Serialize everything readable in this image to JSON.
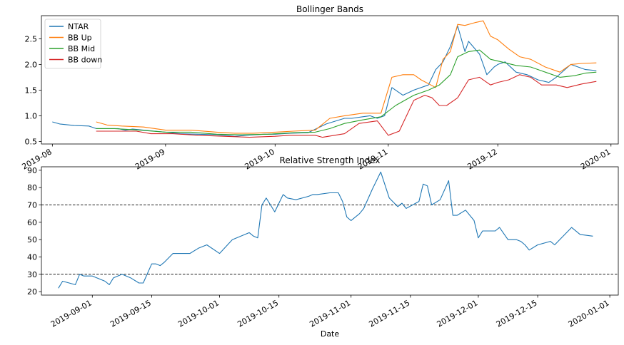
{
  "chart_data": [
    {
      "type": "line",
      "title": "Bollinger Bands",
      "xlabel": "",
      "ylabel": "",
      "x_axis": "date",
      "xlim": [
        "2019-07-29",
        "2020-01-03"
      ],
      "ylim": [
        0.45,
        2.95
      ],
      "yticks": [
        0.5,
        1.0,
        1.5,
        2.0,
        2.5
      ],
      "ytick_labels": [
        "0.5",
        "1.0",
        "1.5",
        "2.0",
        "2.5"
      ],
      "xticks": [
        "2019-08-01",
        "2019-09-01",
        "2019-10-01",
        "2019-11-01",
        "2019-12-01",
        "2020-01-01"
      ],
      "xtick_labels": [
        "2019-08",
        "2019-09",
        "2019-10",
        "2019-11",
        "2019-12",
        "2020-01"
      ],
      "grid": false,
      "legend": "upper left",
      "series": [
        {
          "name": "NTAR",
          "color": "#1f77b4",
          "x": [
            "2019-08-01",
            "2019-08-03",
            "2019-08-07",
            "2019-08-11",
            "2019-08-13",
            "2019-08-19",
            "2019-08-21",
            "2019-08-23",
            "2019-08-29",
            "2019-09-01",
            "2019-09-05",
            "2019-09-10",
            "2019-09-15",
            "2019-09-20",
            "2019-09-23",
            "2019-09-28",
            "2019-10-01",
            "2019-10-05",
            "2019-10-10",
            "2019-10-15",
            "2019-10-20",
            "2019-10-22",
            "2019-10-25",
            "2019-10-27",
            "2019-10-29",
            "2019-10-31",
            "2019-11-02",
            "2019-11-05",
            "2019-11-08",
            "2019-11-12",
            "2019-11-14",
            "2019-11-16",
            "2019-11-18",
            "2019-11-20",
            "2019-11-22",
            "2019-11-23",
            "2019-11-26",
            "2019-11-28",
            "2019-11-30",
            "2019-12-01",
            "2019-12-03",
            "2019-12-06",
            "2019-12-09",
            "2019-12-12",
            "2019-12-15",
            "2019-12-17",
            "2019-12-21",
            "2019-12-23",
            "2019-12-25",
            "2019-12-28"
          ],
          "y": [
            0.88,
            0.84,
            0.81,
            0.8,
            0.75,
            0.75,
            0.72,
            0.74,
            0.7,
            0.68,
            0.65,
            0.64,
            0.63,
            0.6,
            0.62,
            0.64,
            0.64,
            0.66,
            0.67,
            0.84,
            0.95,
            0.95,
            0.98,
            1.0,
            0.95,
            1.0,
            1.55,
            1.4,
            1.5,
            1.6,
            1.9,
            2.05,
            2.35,
            2.75,
            2.25,
            2.45,
            2.2,
            1.8,
            1.95,
            2.0,
            2.05,
            1.85,
            1.8,
            1.7,
            1.65,
            1.75,
            2.0,
            1.95,
            1.9,
            1.88
          ]
        },
        {
          "name": "BB Up",
          "color": "#ff7f0e",
          "x": [
            "2019-08-13",
            "2019-08-16",
            "2019-08-20",
            "2019-08-26",
            "2019-09-01",
            "2019-09-08",
            "2019-09-15",
            "2019-09-20",
            "2019-09-25",
            "2019-10-01",
            "2019-10-06",
            "2019-10-12",
            "2019-10-16",
            "2019-10-20",
            "2019-10-25",
            "2019-10-30",
            "2019-11-02",
            "2019-11-05",
            "2019-11-08",
            "2019-11-10",
            "2019-11-14",
            "2019-11-16",
            "2019-11-18",
            "2019-11-20",
            "2019-11-22",
            "2019-11-25",
            "2019-11-27",
            "2019-11-29",
            "2019-12-01",
            "2019-12-04",
            "2019-12-07",
            "2019-12-10",
            "2019-12-14",
            "2019-12-18",
            "2019-12-21",
            "2019-12-24",
            "2019-12-28"
          ],
          "y": [
            0.88,
            0.82,
            0.8,
            0.78,
            0.72,
            0.72,
            0.68,
            0.66,
            0.66,
            0.68,
            0.7,
            0.72,
            0.95,
            1.0,
            1.05,
            1.05,
            1.75,
            1.8,
            1.8,
            1.7,
            1.55,
            2.1,
            2.25,
            2.78,
            2.76,
            2.82,
            2.85,
            2.55,
            2.48,
            2.3,
            2.15,
            2.1,
            1.95,
            1.85,
            2.0,
            2.02,
            2.03
          ]
        },
        {
          "name": "BB Mid",
          "color": "#2ca02c",
          "x": [
            "2019-08-13",
            "2019-08-18",
            "2019-08-25",
            "2019-09-01",
            "2019-09-08",
            "2019-09-15",
            "2019-09-22",
            "2019-09-29",
            "2019-10-06",
            "2019-10-12",
            "2019-10-16",
            "2019-10-20",
            "2019-10-25",
            "2019-10-30",
            "2019-11-03",
            "2019-11-08",
            "2019-11-12",
            "2019-11-15",
            "2019-11-18",
            "2019-11-20",
            "2019-11-23",
            "2019-11-26",
            "2019-11-29",
            "2019-12-02",
            "2019-12-06",
            "2019-12-10",
            "2019-12-14",
            "2019-12-18",
            "2019-12-22",
            "2019-12-25",
            "2019-12-28"
          ],
          "y": [
            0.75,
            0.75,
            0.72,
            0.68,
            0.68,
            0.64,
            0.63,
            0.64,
            0.67,
            0.68,
            0.75,
            0.85,
            0.92,
            0.98,
            1.2,
            1.4,
            1.5,
            1.6,
            1.8,
            2.15,
            2.25,
            2.28,
            2.1,
            2.05,
            1.98,
            1.95,
            1.85,
            1.75,
            1.78,
            1.83,
            1.85
          ]
        },
        {
          "name": "BB down",
          "color": "#d62728",
          "x": [
            "2019-08-13",
            "2019-08-18",
            "2019-08-24",
            "2019-08-28",
            "2019-09-03",
            "2019-09-10",
            "2019-09-17",
            "2019-09-24",
            "2019-10-01",
            "2019-10-05",
            "2019-10-12",
            "2019-10-14",
            "2019-10-20",
            "2019-10-24",
            "2019-10-29",
            "2019-11-01",
            "2019-11-04",
            "2019-11-08",
            "2019-11-11",
            "2019-11-13",
            "2019-11-15",
            "2019-11-17",
            "2019-11-20",
            "2019-11-23",
            "2019-11-26",
            "2019-11-29",
            "2019-12-01",
            "2019-12-04",
            "2019-12-07",
            "2019-12-10",
            "2019-12-13",
            "2019-12-17",
            "2019-12-20",
            "2019-12-24",
            "2019-12-28"
          ],
          "y": [
            0.7,
            0.7,
            0.7,
            0.65,
            0.65,
            0.62,
            0.6,
            0.58,
            0.6,
            0.62,
            0.62,
            0.58,
            0.65,
            0.85,
            0.9,
            0.62,
            0.7,
            1.3,
            1.4,
            1.35,
            1.2,
            1.2,
            1.35,
            1.7,
            1.75,
            1.6,
            1.65,
            1.7,
            1.8,
            1.75,
            1.6,
            1.6,
            1.55,
            1.62,
            1.67
          ]
        }
      ]
    },
    {
      "type": "line",
      "title": "Relative Strength Index",
      "xlabel": "Date",
      "ylabel": "",
      "x_axis": "date",
      "xlim": [
        "2019-08-20",
        "2020-01-03"
      ],
      "ylim": [
        18,
        92
      ],
      "yticks": [
        20,
        30,
        40,
        50,
        60,
        70,
        80,
        90
      ],
      "ytick_labels": [
        "20",
        "30",
        "40",
        "50",
        "60",
        "70",
        "80",
        "90"
      ],
      "xticks": [
        "2019-09-01",
        "2019-09-15",
        "2019-10-01",
        "2019-10-15",
        "2019-11-01",
        "2019-11-15",
        "2019-12-01",
        "2019-12-15",
        "2020-01-01"
      ],
      "xtick_labels": [
        "2019-09-01",
        "2019-09-15",
        "2019-10-01",
        "2019-10-15",
        "2019-11-01",
        "2019-11-15",
        "2019-12-01",
        "2019-12-15",
        "2020-01-01"
      ],
      "grid": false,
      "hlines": [
        {
          "y": 70,
          "style": "dashed",
          "color": "#000000"
        },
        {
          "y": 30,
          "style": "dashed",
          "color": "#000000"
        }
      ],
      "series": [
        {
          "name": "",
          "color": "#1f77b4",
          "x": [
            "2019-08-24",
            "2019-08-25",
            "2019-08-28",
            "2019-08-29",
            "2019-08-30",
            "2019-09-01",
            "2019-09-04",
            "2019-09-05",
            "2019-09-06",
            "2019-09-08",
            "2019-09-10",
            "2019-09-12",
            "2019-09-13",
            "2019-09-15",
            "2019-09-16",
            "2019-09-17",
            "2019-09-18",
            "2019-09-20",
            "2019-09-22",
            "2019-09-24",
            "2019-09-26",
            "2019-09-28",
            "2019-10-01",
            "2019-10-04",
            "2019-10-08",
            "2019-10-09",
            "2019-10-10",
            "2019-10-11",
            "2019-10-12",
            "2019-10-14",
            "2019-10-16",
            "2019-10-17",
            "2019-10-19",
            "2019-10-22",
            "2019-10-23",
            "2019-10-24",
            "2019-10-27",
            "2019-10-29",
            "2019-10-30",
            "2019-10-31",
            "2019-11-01",
            "2019-11-03",
            "2019-11-04",
            "2019-11-06",
            "2019-11-08",
            "2019-11-10",
            "2019-11-12",
            "2019-11-13",
            "2019-11-14",
            "2019-11-17",
            "2019-11-18",
            "2019-11-19",
            "2019-11-20",
            "2019-11-22",
            "2019-11-24",
            "2019-11-25",
            "2019-11-26",
            "2019-11-28",
            "2019-11-30",
            "2019-12-01",
            "2019-12-02",
            "2019-12-03",
            "2019-12-05",
            "2019-12-06",
            "2019-12-08",
            "2019-12-10",
            "2019-12-11",
            "2019-12-12",
            "2019-12-13",
            "2019-12-15",
            "2019-12-18",
            "2019-12-19",
            "2019-12-21",
            "2019-12-23",
            "2019-12-25",
            "2019-12-28"
          ],
          "y": [
            22,
            26,
            24,
            30,
            29,
            29,
            26,
            24,
            28,
            30,
            28,
            25,
            25,
            36,
            36,
            35,
            37,
            42,
            42,
            42,
            45,
            47,
            42,
            50,
            54,
            52,
            51,
            70,
            74,
            66,
            76,
            74,
            73,
            75,
            76,
            76,
            77,
            77,
            72,
            63,
            61,
            65,
            68,
            79,
            89,
            74,
            69,
            71,
            68,
            72,
            82,
            81,
            70,
            73,
            84,
            64,
            64,
            67,
            61,
            51,
            55,
            55,
            55,
            57,
            50,
            50,
            49,
            47,
            44,
            47,
            49,
            47,
            52,
            57,
            53,
            52
          ]
        }
      ]
    }
  ]
}
